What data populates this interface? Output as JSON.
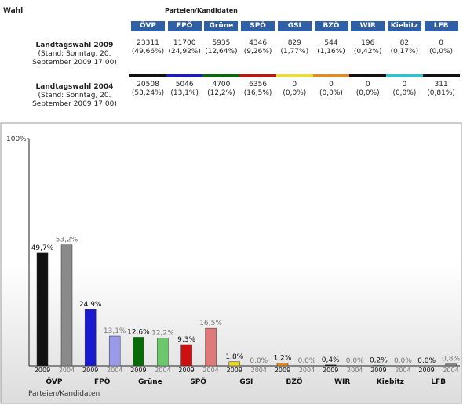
{
  "header": {
    "title": "Wahl",
    "group": "Parteien/Kandidaten"
  },
  "table": {
    "columns": [
      "ÖVP",
      "FPÖ",
      "Grüne",
      "SPÖ",
      "GSI",
      "BZÖ",
      "WIR",
      "Kiebitz",
      "LFB"
    ],
    "column_colors": [
      "#111111",
      "#1a1acc",
      "#0a6a0a",
      "#cc1111",
      "#f0e020",
      "#e88a1a",
      "#111111",
      "#22c8d8",
      "#111111"
    ],
    "rows": [
      {
        "label": "Landtagswahl 2009",
        "note": "(Stand: Sonntag, 20. September 2009 17:00)",
        "votes": [
          "23311",
          "11700",
          "5935",
          "4346",
          "829",
          "544",
          "196",
          "82",
          "0"
        ],
        "shares": [
          "(49,66%)",
          "(24,92%)",
          "(12,64%)",
          "(9,26%)",
          "(1,77%)",
          "(1,16%)",
          "(0,42%)",
          "(0,17%)",
          "(0,0%)"
        ]
      },
      {
        "label": "Landtagswahl 2004",
        "note": "(Stand: Sonntag, 20. September 2009 17:00)",
        "votes": [
          "20508",
          "5046",
          "4700",
          "6356",
          "0",
          "0",
          "0",
          "0",
          "311"
        ],
        "shares": [
          "(53,24%)",
          "(13,1%)",
          "(12,2%)",
          "(16,5%)",
          "(0,0%)",
          "(0,0%)",
          "(0,0%)",
          "(0,0%)",
          "(0,81%)"
        ]
      }
    ]
  },
  "chart_data": {
    "type": "bar",
    "x_label": "Parteien/Kandidaten",
    "categories": [
      "ÖVP",
      "FPÖ",
      "Grüne",
      "SPÖ",
      "GSI",
      "BZÖ",
      "WIR",
      "Kiebitz",
      "LFB"
    ],
    "series": [
      {
        "name": "2009",
        "colors": [
          "#111111",
          "#1a1acc",
          "#0a6a0a",
          "#cc1111",
          "#e8d81a",
          "#e88a1a",
          "#111111",
          "#22c8d8",
          "#111111"
        ],
        "values": [
          49.7,
          24.9,
          12.6,
          9.3,
          1.8,
          1.2,
          0.4,
          0.2,
          0.0
        ],
        "value_labels": [
          "49,7%",
          "24,9%",
          "12,6%",
          "9,3%",
          "1,8%",
          "1,2%",
          "0,4%",
          "0,2%",
          "0,0%"
        ]
      },
      {
        "name": "2004",
        "colors": [
          "#8a8a8a",
          "#9a9ae8",
          "#6ac86a",
          "#e07a7a",
          "#f0e880",
          "#f0b880",
          "#888888",
          "#88e0e8",
          "#888888"
        ],
        "values": [
          53.2,
          13.1,
          12.2,
          16.5,
          0.0,
          0.0,
          0.0,
          0.0,
          0.8
        ],
        "value_labels": [
          "53,2%",
          "13,1%",
          "12,2%",
          "16,5%",
          "0,0%",
          "0,0%",
          "0,0%",
          "0,0%",
          "0,8%"
        ]
      }
    ],
    "ylim": [
      0,
      100
    ],
    "yticks": [
      {
        "value": 100,
        "label": "100%"
      }
    ]
  }
}
